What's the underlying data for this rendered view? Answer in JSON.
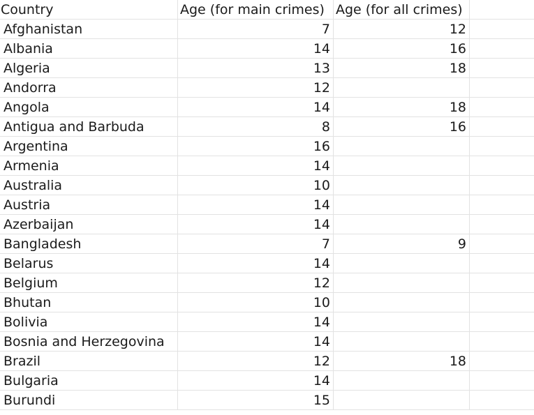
{
  "table": {
    "headers": [
      "Country",
      "Age (for main crimes)",
      "Age (for all crimes)"
    ],
    "rows": [
      [
        "Afghanistan",
        "7",
        "12"
      ],
      [
        "Albania",
        "14",
        "16"
      ],
      [
        "Algeria",
        "13",
        "18"
      ],
      [
        "Andorra",
        "12",
        ""
      ],
      [
        "Angola",
        "14",
        "18"
      ],
      [
        "Antigua and Barbuda",
        "8",
        "16"
      ],
      [
        "Argentina",
        "16",
        ""
      ],
      [
        "Armenia",
        "14",
        ""
      ],
      [
        "Australia",
        "10",
        ""
      ],
      [
        "Austria",
        "14",
        ""
      ],
      [
        "Azerbaijan",
        "14",
        ""
      ],
      [
        "Bangladesh",
        "7",
        "9"
      ],
      [
        "Belarus",
        "14",
        ""
      ],
      [
        "Belgium",
        "12",
        ""
      ],
      [
        "Bhutan",
        "10",
        ""
      ],
      [
        "Bolivia",
        "14",
        ""
      ],
      [
        "Bosnia and Herzegovina",
        "14",
        ""
      ],
      [
        "Brazil",
        "12",
        "18"
      ],
      [
        "Bulgaria",
        "14",
        ""
      ],
      [
        "Burundi",
        "15",
        ""
      ]
    ]
  }
}
